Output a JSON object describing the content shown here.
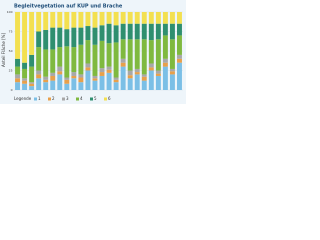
{
  "chart_data": {
    "type": "stacked-bar",
    "title": "Begleitvegetation auf KUP und Brache",
    "y_label": "Anteil Fläche [%]",
    "legend_title": "Legende",
    "categories": [
      null,
      null,
      null,
      null,
      null,
      null,
      null,
      null,
      null,
      null,
      null,
      null,
      null,
      null,
      null,
      null,
      null,
      null,
      null,
      null,
      null,
      null,
      null,
      null
    ],
    "ylim": [
      0,
      100
    ],
    "yticks": [
      0,
      25,
      50,
      75,
      100
    ],
    "grid": true,
    "series": [
      {
        "name": "1",
        "color": "#7bbfe6",
        "values": [
          10,
          8,
          5,
          15,
          10,
          12,
          20,
          8,
          15,
          10,
          25,
          12,
          18,
          22,
          10,
          30,
          15,
          20,
          12,
          25,
          18,
          30,
          20,
          35
        ]
      },
      {
        "name": "2",
        "color": "#e8a04a",
        "values": [
          5,
          4,
          3,
          5,
          3,
          6,
          4,
          5,
          3,
          6,
          4,
          3,
          5,
          4,
          3,
          5,
          4,
          3,
          5,
          4,
          3,
          5,
          4,
          5
        ]
      },
      {
        "name": "3",
        "color": "#a8a8a8",
        "values": [
          5,
          3,
          2,
          5,
          4,
          4,
          6,
          3,
          5,
          4,
          5,
          3,
          5,
          4,
          3,
          5,
          6,
          4,
          3,
          5,
          4,
          5,
          3,
          5
        ]
      },
      {
        "name": "4",
        "color": "#7fb93f",
        "values": [
          10,
          12,
          20,
          30,
          35,
          30,
          25,
          40,
          32,
          38,
          30,
          40,
          35,
          30,
          45,
          25,
          40,
          38,
          45,
          30,
          40,
          30,
          38,
          25
        ]
      },
      {
        "name": "5",
        "color": "#2f8f6f",
        "values": [
          10,
          8,
          15,
          20,
          25,
          28,
          25,
          22,
          25,
          22,
          18,
          22,
          20,
          25,
          22,
          20,
          20,
          20,
          20,
          21,
          20,
          15,
          20,
          15
        ]
      },
      {
        "name": "6",
        "color": "#f3e050",
        "values": [
          60,
          65,
          55,
          25,
          23,
          20,
          20,
          22,
          20,
          20,
          18,
          20,
          17,
          15,
          17,
          15,
          15,
          15,
          15,
          15,
          15,
          15,
          15,
          15
        ]
      }
    ]
  }
}
